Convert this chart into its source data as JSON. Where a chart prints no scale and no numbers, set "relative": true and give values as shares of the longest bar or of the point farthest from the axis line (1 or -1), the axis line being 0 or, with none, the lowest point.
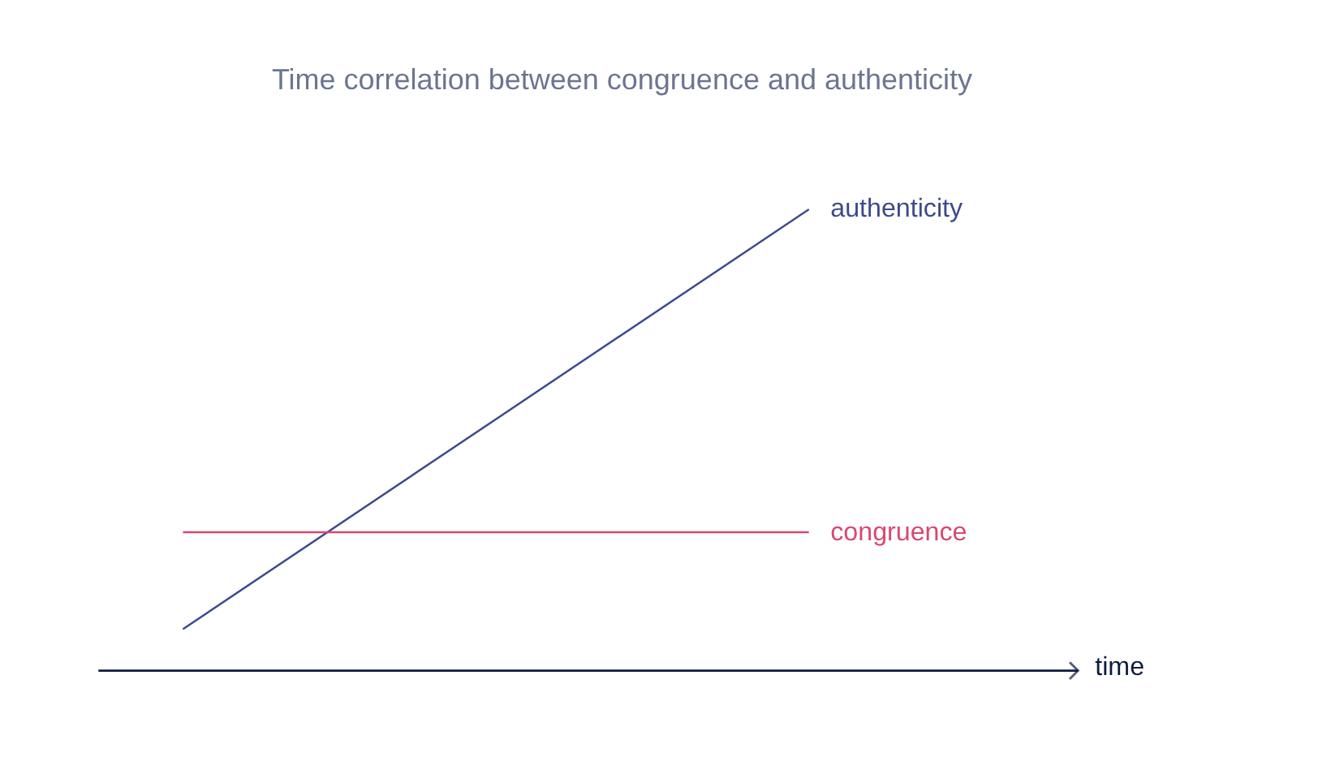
{
  "chart_data": {
    "type": "line",
    "title": "Time correlation between congruence and authenticity",
    "xlabel": "time",
    "relative": true,
    "categories": [
      null,
      null
    ],
    "series": [
      {
        "name": "authenticity",
        "color": "#3c4a8c",
        "values": [
          0.09,
          1
        ]
      },
      {
        "name": "congruence",
        "color": "#d9486f",
        "values": [
          0.3,
          0.3
        ]
      }
    ]
  }
}
